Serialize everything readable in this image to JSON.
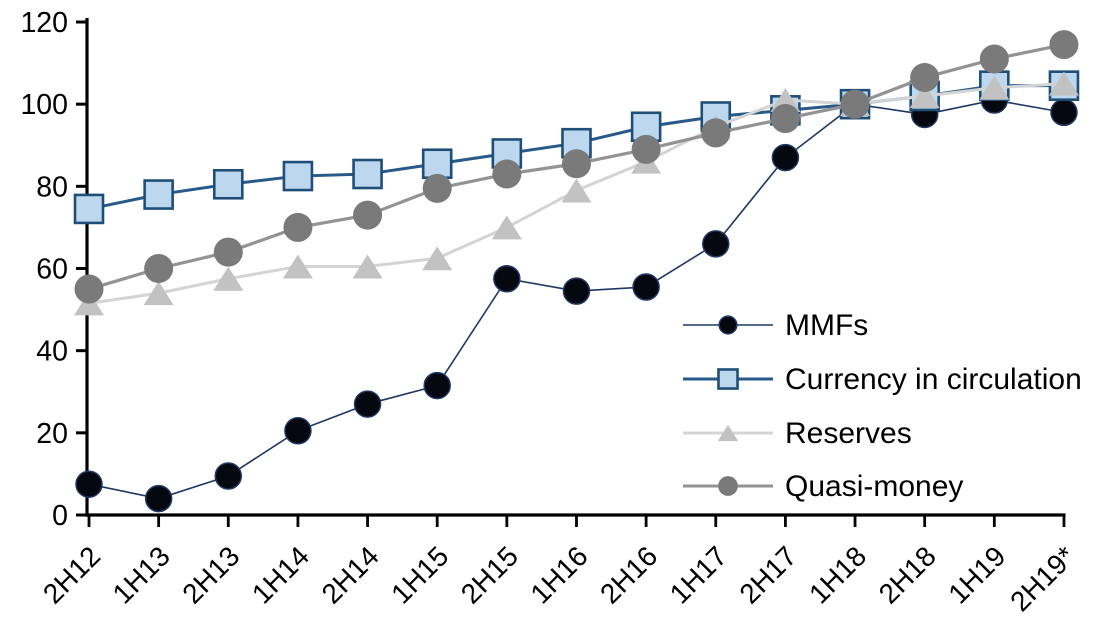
{
  "chart_data": {
    "type": "line",
    "title": "",
    "xlabel": "",
    "ylabel": "",
    "categories": [
      "2H12",
      "1H13",
      "2H13",
      "1H14",
      "2H14",
      "1H15",
      "2H15",
      "1H16",
      "2H16",
      "1H17",
      "2H17",
      "1H18",
      "2H18",
      "1H19",
      "2H19*"
    ],
    "series": [
      {
        "name": "MMFs",
        "marker": "circle",
        "values": [
          7.5,
          4,
          9.5,
          20.5,
          27,
          31.5,
          57.5,
          54.5,
          55.5,
          66,
          87,
          100,
          97.5,
          101,
          98
        ],
        "line_color": "#1F3864",
        "line_width": 1.6,
        "marker_fill": "#06080F",
        "marker_stroke": "#1F3864",
        "marker_stroke_width": 1.5,
        "marker_size": 26
      },
      {
        "name": "Currency in circulation",
        "marker": "square",
        "values": [
          74.5,
          78,
          80.5,
          82.5,
          83,
          85.5,
          88,
          90.5,
          94.5,
          97,
          98.5,
          100,
          102,
          104.5,
          104.5
        ],
        "line_color": "#27598A",
        "line_width": 3,
        "marker_fill": "#BDD7EE",
        "marker_stroke": "#1F4E79",
        "marker_stroke_width": 2.6,
        "marker_size": 28
      },
      {
        "name": "Reserves",
        "marker": "triangle",
        "values": [
          51.5,
          54,
          57.5,
          60.5,
          60.5,
          62.5,
          70,
          79,
          86,
          94.5,
          101,
          100,
          102,
          104,
          105
        ],
        "line_color": "#D4D4D4",
        "line_width": 3,
        "marker_fill": "#C2C2C2",
        "marker_stroke": "#C2C2C2",
        "marker_stroke_width": 0,
        "marker_size": 30
      },
      {
        "name": "Quasi-money",
        "marker": "circle",
        "values": [
          55,
          60,
          64,
          70,
          73,
          79.5,
          83,
          85.5,
          89,
          93,
          96.5,
          100,
          106.5,
          111,
          114.5
        ],
        "line_color": "#939393",
        "line_width": 3.2,
        "marker_fill": "#7A7A7A",
        "marker_stroke": "#7A7A7A",
        "marker_stroke_width": 0,
        "marker_size": 29
      }
    ],
    "yticks": [
      0,
      20,
      40,
      60,
      80,
      100,
      120
    ],
    "ylim": [
      0,
      120
    ],
    "grid": false,
    "legend_position": "inside-right",
    "axis_color": "#000000"
  }
}
